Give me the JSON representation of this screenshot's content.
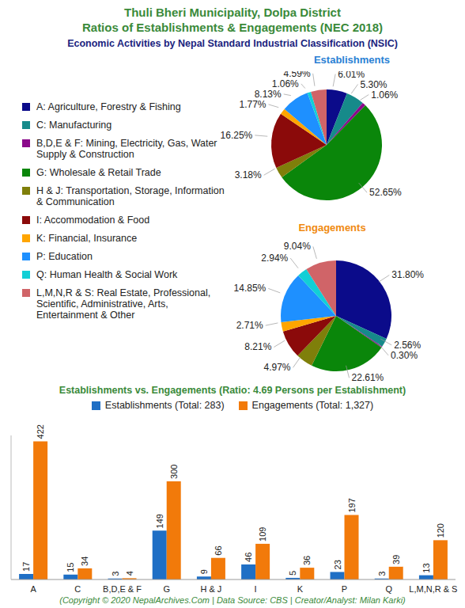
{
  "title": [
    "Thuli Bheri Municipality, Dolpa District",
    "Ratios of Establishments & Engagements (NEC 2018)"
  ],
  "subtitle": "Economic Activities by Nepal Standard Industrial Classification (NSIC)",
  "footer": "(Copyright © 2020 NepalArchives.Com | Data Source: CBS | Creator/Analyst: Milan Karki)",
  "chart_data": [
    {
      "type": "pie",
      "title": "Establishments",
      "categories": [
        "A: Agriculture, Forestry & Fishing",
        "C: Manufacturing",
        "B,D,E & F: Mining, Electricity, Gas, Water Supply & Construction",
        "G: Wholesale & Retail Trade",
        "H & J: Transportation, Storage, Information & Communication",
        "I: Accommodation & Food",
        "K: Financial, Insurance",
        "P: Education",
        "Q: Human Health & Social Work",
        "L,M,N,R & S: Real Estate, Professional, Scientific, Administrative, Arts, Entertainment & Other"
      ],
      "values": [
        6.01,
        5.3,
        1.06,
        52.65,
        3.18,
        16.25,
        1.77,
        8.13,
        1.06,
        4.59
      ],
      "value_labels": [
        "6.01%",
        "5.30%",
        "1.06%",
        "52.65%",
        "3.18%",
        "16.25%",
        "1.77%",
        "8.13%",
        "1.06%",
        "4.59%"
      ],
      "colors": [
        "#0b0b8a",
        "#168a8a",
        "#8b0a8b",
        "#0a860a",
        "#7f7f0a",
        "#8b0a0a",
        "#ffa500",
        "#1e90ff",
        "#12cfd6",
        "#d06468"
      ]
    },
    {
      "type": "pie",
      "title": "Engagements",
      "categories": [
        "A: Agriculture, Forestry & Fishing",
        "C: Manufacturing",
        "B,D,E & F: Mining, Electricity, Gas, Water Supply & Construction",
        "G: Wholesale & Retail Trade",
        "H & J: Transportation, Storage, Information & Communication",
        "I: Accommodation & Food",
        "K: Financial, Insurance",
        "P: Education",
        "Q: Human Health & Social Work",
        "L,M,N,R & S: Real Estate, Professional, Scientific, Administrative, Arts, Entertainment & Other"
      ],
      "values": [
        31.8,
        2.56,
        0.3,
        22.61,
        4.97,
        8.21,
        2.71,
        14.85,
        2.94,
        9.04
      ],
      "value_labels": [
        "31.80%",
        "2.56%",
        "0.30%",
        "22.61%",
        "4.97%",
        "8.21%",
        "2.71%",
        "14.85%",
        "2.94%",
        "9.04%"
      ],
      "colors": [
        "#0b0b8a",
        "#168a8a",
        "#8b0a8b",
        "#0a860a",
        "#7f7f0a",
        "#8b0a0a",
        "#ffa500",
        "#1e90ff",
        "#12cfd6",
        "#d06468"
      ]
    },
    {
      "type": "bar",
      "title": "Establishments vs. Engagements (Ratio: 4.69 Persons per Establishment)",
      "categories": [
        "A",
        "C",
        "B,D,E & F",
        "G",
        "H & J",
        "I",
        "K",
        "P",
        "Q",
        "L,M,N,R & S"
      ],
      "series": [
        {
          "name": "Establishments (Total: 283)",
          "color": "#1f6fc5",
          "values": [
            17,
            15,
            3,
            149,
            9,
            46,
            5,
            23,
            3,
            13
          ]
        },
        {
          "name": "Engagements (Total: 1,327)",
          "color": "#f27a0a",
          "values": [
            422,
            34,
            4,
            300,
            66,
            109,
            36,
            197,
            39,
            120
          ]
        }
      ],
      "ylim": [
        0,
        440
      ],
      "data_labels": true,
      "tick_labels": "x",
      "legend": "top"
    }
  ]
}
